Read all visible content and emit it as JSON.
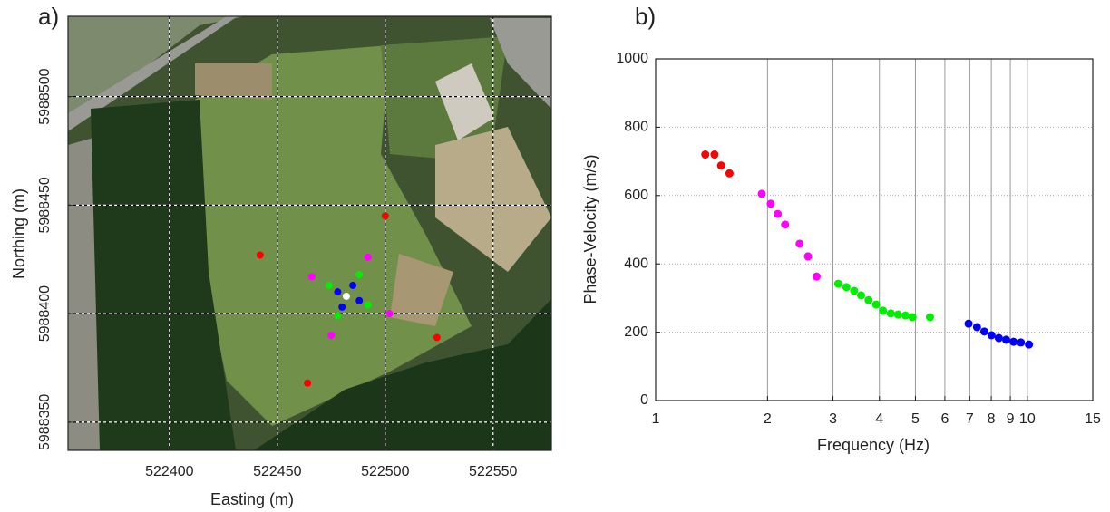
{
  "chart_data": [
    {
      "type": "scatter",
      "label": "a)",
      "x_label": "Easting (m)",
      "y_label": "Northing (m)",
      "xlim": [
        522353,
        522577
      ],
      "ylim": [
        5988337,
        5988537
      ],
      "xticks": [
        522400,
        522450,
        522500,
        522550
      ],
      "yticks": [
        5988350,
        5988400,
        5988450,
        5988500
      ],
      "grid": true,
      "series": [
        {
          "color": "#ff0000",
          "x": [
            522500,
            522442,
            522524,
            522464
          ],
          "y": [
            5988445,
            5988427,
            5988389,
            5988368
          ]
        },
        {
          "color": "#ff00ff",
          "x": [
            522466,
            522492,
            522502,
            522475
          ],
          "y": [
            5988417,
            5988426,
            5988400,
            5988390
          ]
        },
        {
          "color": "#00ee00",
          "x": [
            522474,
            522488,
            522492,
            522478
          ],
          "y": [
            5988413,
            5988418,
            5988404,
            5988399
          ]
        },
        {
          "color": "#0000ff",
          "x": [
            522478,
            522485,
            522488,
            522480
          ],
          "y": [
            5988410,
            5988413,
            5988406,
            5988403
          ]
        },
        {
          "color": "#ffffff",
          "x": [
            522482
          ],
          "y": [
            5988408
          ]
        }
      ]
    },
    {
      "type": "scatter",
      "label": "b)",
      "x_label": "Frequency (Hz)",
      "y_label": "Phase-Velocity (m/s)",
      "log_x": true,
      "xlim": [
        1,
        15
      ],
      "ylim": [
        0,
        1000
      ],
      "xticks": [
        1,
        2,
        3,
        4,
        5,
        6,
        7,
        8,
        9,
        10,
        15
      ],
      "yticks": [
        0,
        200,
        400,
        600,
        800,
        1000
      ],
      "grid": true,
      "series": [
        {
          "color": "#ff0000",
          "x": [
            1.36,
            1.44,
            1.5,
            1.58
          ],
          "y": [
            720,
            720,
            688,
            665
          ]
        },
        {
          "color": "#ff00ff",
          "x": [
            1.93,
            2.04,
            2.13,
            2.23,
            2.44,
            2.57,
            2.71
          ],
          "y": [
            605,
            576,
            546,
            515,
            459,
            422,
            363
          ]
        },
        {
          "color": "#00ee00",
          "x": [
            3.1,
            3.26,
            3.42,
            3.57,
            3.74,
            3.92,
            4.09,
            4.29,
            4.49,
            4.7,
            4.91,
            5.47
          ],
          "y": [
            342,
            332,
            321,
            308,
            294,
            281,
            263,
            255,
            252,
            249,
            244,
            244
          ]
        },
        {
          "color": "#0000ff",
          "x": [
            6.95,
            7.32,
            7.66,
            8.01,
            8.38,
            8.77,
            9.18,
            9.61,
            10.1
          ],
          "y": [
            225,
            215,
            202,
            191,
            183,
            178,
            172,
            170,
            164
          ]
        }
      ]
    }
  ]
}
